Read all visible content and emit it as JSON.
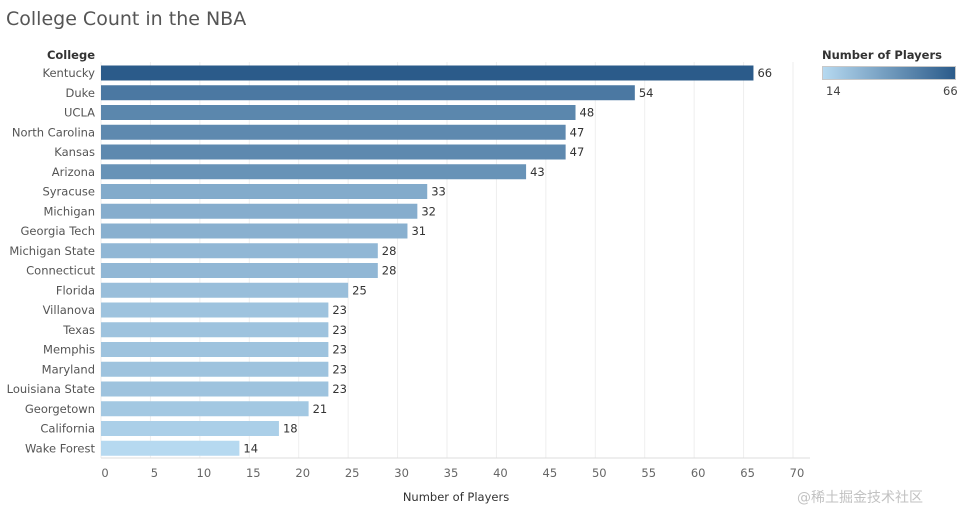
{
  "chart_data": {
    "type": "bar",
    "orientation": "horizontal",
    "title": "College Count in the NBA",
    "category_header": "College",
    "xlabel": "Number of Players",
    "ylabel": "College",
    "xlim": [
      0,
      70
    ],
    "ticks": [
      0,
      5,
      10,
      15,
      20,
      25,
      30,
      35,
      40,
      45,
      50,
      55,
      60,
      65,
      70
    ],
    "grid": true,
    "categories": [
      "Kentucky",
      "Duke",
      "UCLA",
      "North Carolina",
      "Kansas",
      "Arizona",
      "Syracuse",
      "Michigan",
      "Georgia Tech",
      "Michigan State",
      "Connecticut",
      "Florida",
      "Villanova",
      "Texas",
      "Memphis",
      "Maryland",
      "Louisiana State",
      "Georgetown",
      "California",
      "Wake Forest"
    ],
    "values": [
      66,
      54,
      48,
      47,
      47,
      43,
      33,
      32,
      31,
      28,
      28,
      25,
      23,
      23,
      23,
      23,
      23,
      21,
      18,
      14
    ],
    "legend": {
      "title": "Number of Players",
      "min": "14",
      "max": "66",
      "position": "top-right"
    },
    "colors": {
      "low": "#b6d9f0",
      "high": "#2b5b8a"
    }
  },
  "watermark": "@稀土掘金技术社区"
}
